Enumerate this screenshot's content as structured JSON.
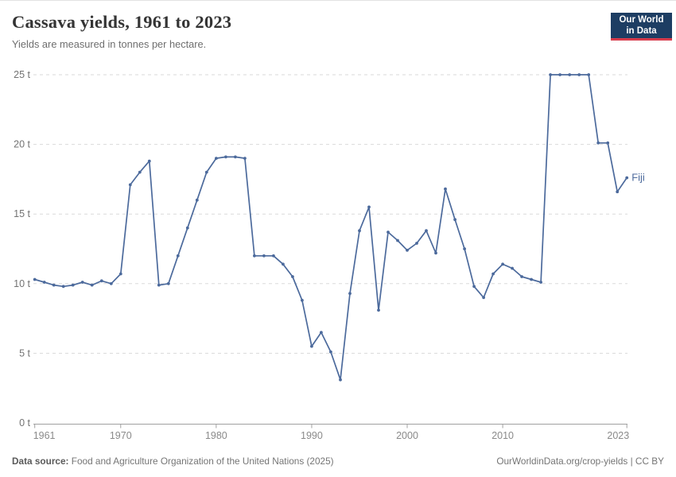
{
  "header": {
    "title": "Cassava yields, 1961 to 2023",
    "subtitle": "Yields are measured in tonnes per hectare.",
    "logo_line1": "Our World",
    "logo_line2": "in Data"
  },
  "colors": {
    "series_blue": "#4c6a9c",
    "logo_navy": "#1d3d63",
    "logo_red": "#d73c4c",
    "gridline": "#dadada",
    "axis": "#a0a0a0"
  },
  "chart_data": {
    "type": "line",
    "title": "Cassava yields, 1961 to 2023",
    "subtitle": "Yields are measured in tonnes per hectare.",
    "xlabel": "",
    "ylabel": "",
    "y_unit": " t",
    "xlim": [
      1961,
      2023
    ],
    "ylim": [
      0,
      25
    ],
    "xticks": [
      1961,
      1970,
      1980,
      1990,
      2000,
      2010,
      2023
    ],
    "yticks": [
      0,
      5,
      10,
      15,
      20,
      25
    ],
    "grid": "horizontal-dashed",
    "legend_position": "end-of-line-label",
    "series": [
      {
        "name": "Fiji",
        "color": "#4c6a9c",
        "years": [
          1961,
          1962,
          1963,
          1964,
          1965,
          1966,
          1967,
          1968,
          1969,
          1970,
          1971,
          1972,
          1973,
          1974,
          1975,
          1976,
          1977,
          1978,
          1979,
          1980,
          1981,
          1982,
          1983,
          1984,
          1985,
          1986,
          1987,
          1988,
          1989,
          1990,
          1991,
          1992,
          1993,
          1994,
          1995,
          1996,
          1997,
          1998,
          1999,
          2000,
          2001,
          2002,
          2003,
          2004,
          2005,
          2006,
          2007,
          2008,
          2009,
          2010,
          2011,
          2012,
          2013,
          2014,
          2015,
          2016,
          2017,
          2018,
          2019,
          2020,
          2021,
          2022,
          2023
        ],
        "values": [
          10.3,
          10.1,
          9.9,
          9.8,
          9.9,
          10.1,
          9.9,
          10.2,
          10.0,
          10.7,
          17.1,
          18.0,
          18.8,
          9.9,
          10.0,
          12.0,
          14.0,
          16.0,
          18.0,
          19.0,
          19.1,
          19.1,
          19.0,
          12.0,
          12.0,
          12.0,
          11.4,
          10.5,
          8.8,
          5.5,
          6.5,
          5.1,
          3.1,
          9.3,
          13.8,
          15.5,
          8.1,
          13.7,
          13.1,
          12.4,
          12.9,
          13.8,
          12.2,
          16.8,
          14.6,
          12.5,
          9.8,
          9.0,
          10.7,
          11.4,
          11.1,
          10.5,
          10.3,
          10.1,
          25.0,
          25.0,
          25.0,
          25.0,
          25.0,
          20.1,
          20.1,
          16.6,
          17.6
        ]
      }
    ]
  },
  "footer": {
    "source_label": "Data source:",
    "source_text": " Food and Agriculture Organization of the United Nations (2025)",
    "credit": "OurWorldinData.org/crop-yields | CC BY"
  }
}
